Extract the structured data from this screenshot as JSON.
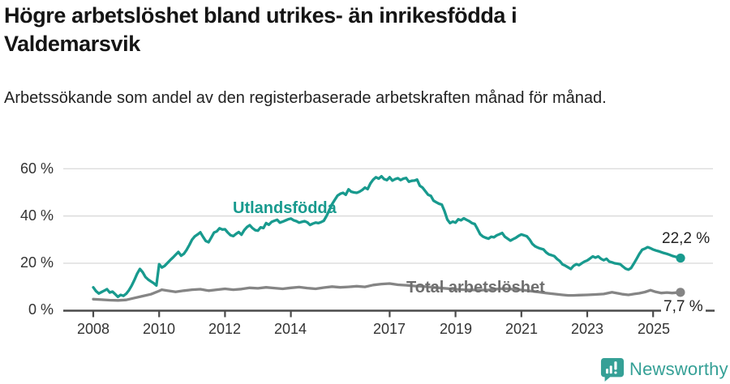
{
  "header": {
    "title": "Högre arbetslöshet bland utrikes- än inrikesfödda i Valdemarsvik",
    "subtitle": "Arbetssökande som andel av den registerbaserade arbetskraften månad för månad."
  },
  "footer": {
    "brand": "Newsworthy"
  },
  "colors": {
    "teal": "#189a8e",
    "gray_line": "#858585",
    "gray_label": "#6e6e6e",
    "axis": "#4a4a4a",
    "grid": "#dcdcdc",
    "logo_teal": "#35a096"
  },
  "chart_data": {
    "type": "line",
    "title": "Högre arbetslöshet bland utrikes- än inrikesfödda i Valdemarsvik",
    "subtitle": "Arbetssökande som andel av den registerbaserade arbetskraften månad för månad.",
    "grid": true,
    "legend_position": "inline-labels",
    "xlim": [
      2007.5,
      2026.2
    ],
    "ylim": [
      0,
      60
    ],
    "y_ticks": [
      0,
      20,
      40,
      60
    ],
    "y_tick_labels": [
      "0 %",
      "20 %",
      "40 %",
      "60 %"
    ],
    "x_ticks": [
      2008,
      2010,
      2012,
      2014,
      2017,
      2019,
      2021,
      2023,
      2025
    ],
    "x_tick_labels": [
      "2008",
      "2010",
      "2012",
      "2014",
      "2017",
      "2019",
      "2021",
      "2023",
      "2025"
    ],
    "series": [
      {
        "name": "Utlandsfödda",
        "color": "#189a8e",
        "end_label": "22,2 %",
        "end_value": 22.2,
        "interval": "monthly",
        "start_year": 2008,
        "start_month": 1,
        "values": [
          9.8,
          8.2,
          7.2,
          7.8,
          8.4,
          9.0,
          7.6,
          8.0,
          6.9,
          5.8,
          6.6,
          6.2,
          7.1,
          8.6,
          10.6,
          13.0,
          15.6,
          17.6,
          16.2,
          14.2,
          13.1,
          12.3,
          11.6,
          10.6,
          19.6,
          18.2,
          18.9,
          20.1,
          21.3,
          22.4,
          23.6,
          24.8,
          23.2,
          24.0,
          25.6,
          27.7,
          30.0,
          31.4,
          32.2,
          33.1,
          31.2,
          29.4,
          28.9,
          30.9,
          33.0,
          33.5,
          34.8,
          34.3,
          34.4,
          33.0,
          31.9,
          31.5,
          32.4,
          33.2,
          32.1,
          34.0,
          35.3,
          36.1,
          34.9,
          34.0,
          33.8,
          35.2,
          34.9,
          37.0,
          36.3,
          37.5,
          38.0,
          38.4,
          37.2,
          37.6,
          38.1,
          38.6,
          38.9,
          38.2,
          37.8,
          37.2,
          37.5,
          37.8,
          37.3,
          36.2,
          36.8,
          37.2,
          37.0,
          37.4,
          38.0,
          40.0,
          42.5,
          45.0,
          46.8,
          48.6,
          49.4,
          49.8,
          49.0,
          51.3,
          50.3,
          50.0,
          49.8,
          50.3,
          51.0,
          52.0,
          51.4,
          53.8,
          55.4,
          56.4,
          55.8,
          56.8,
          55.6,
          55.2,
          56.4,
          55.0,
          55.6,
          56.0,
          55.2,
          55.8,
          56.1,
          54.5,
          54.9,
          55.0,
          55.4,
          52.8,
          52.0,
          50.5,
          49.0,
          48.5,
          46.5,
          45.8,
          45.2,
          44.8,
          42.0,
          38.5,
          37.0,
          37.6,
          37.2,
          38.6,
          38.2,
          39.0,
          38.4,
          37.8,
          37.0,
          36.6,
          34.5,
          32.3,
          31.3,
          30.8,
          30.4,
          31.2,
          31.0,
          31.8,
          32.3,
          32.8,
          31.2,
          30.4,
          29.6,
          30.2,
          30.8,
          31.6,
          32.2,
          31.8,
          31.4,
          30.0,
          28.2,
          27.2,
          26.6,
          26.2,
          25.9,
          24.6,
          23.8,
          23.4,
          23.0,
          21.8,
          20.9,
          19.5,
          19.0,
          18.3,
          17.6,
          18.9,
          19.6,
          19.2,
          20.0,
          20.7,
          21.2,
          22.0,
          22.9,
          22.4,
          22.9,
          21.9,
          21.3,
          21.9,
          20.7,
          20.4,
          20.0,
          19.8,
          19.6,
          18.6,
          17.7,
          17.3,
          18.0,
          19.9,
          21.9,
          24.0,
          25.7,
          26.2,
          26.8,
          26.4,
          25.8,
          25.4,
          25.1,
          24.7,
          24.3,
          24.0,
          23.6,
          23.1,
          22.8,
          22.5,
          22.2
        ]
      },
      {
        "name": "Total arbetslöshet",
        "color": "#858585",
        "end_label": "7,7 %",
        "end_value": 7.7,
        "x": [
          2008.0,
          2008.25,
          2008.5,
          2008.75,
          2009.0,
          2009.25,
          2009.5,
          2009.75,
          2010.0,
          2010.08,
          2010.25,
          2010.5,
          2010.75,
          2011.0,
          2011.25,
          2011.5,
          2011.75,
          2012.0,
          2012.25,
          2012.5,
          2012.75,
          2013.0,
          2013.25,
          2013.5,
          2013.75,
          2014.0,
          2014.25,
          2014.5,
          2014.75,
          2015.0,
          2015.25,
          2015.5,
          2015.75,
          2016.0,
          2016.25,
          2016.5,
          2016.75,
          2017.0,
          2017.25,
          2017.5,
          2017.75,
          2018.0,
          2018.25,
          2018.5,
          2018.75,
          2019.0,
          2019.25,
          2019.5,
          2019.75,
          2020.0,
          2020.25,
          2020.5,
          2020.75,
          2021.0,
          2021.25,
          2021.5,
          2021.75,
          2022.0,
          2022.25,
          2022.42,
          2022.58,
          2022.75,
          2023.0,
          2023.25,
          2023.5,
          2023.75,
          2023.92,
          2024.08,
          2024.25,
          2024.42,
          2024.58,
          2024.75,
          2024.92,
          2025.08,
          2025.25,
          2025.42,
          2025.58,
          2025.83
        ],
        "y": [
          4.8,
          4.6,
          4.4,
          4.3,
          4.5,
          5.3,
          6.1,
          6.9,
          8.3,
          8.8,
          8.4,
          7.9,
          8.4,
          8.8,
          9.0,
          8.4,
          8.8,
          9.2,
          8.8,
          9.1,
          9.6,
          9.4,
          9.8,
          9.5,
          9.2,
          9.6,
          9.9,
          9.5,
          9.2,
          9.7,
          10.1,
          9.8,
          10.0,
          10.3,
          10.0,
          10.8,
          11.2,
          11.4,
          10.9,
          10.7,
          10.4,
          10.2,
          9.9,
          9.6,
          9.3,
          9.0,
          8.8,
          8.7,
          8.6,
          8.7,
          9.1,
          9.3,
          9.0,
          8.7,
          8.3,
          7.9,
          7.4,
          7.0,
          6.6,
          6.4,
          6.4,
          6.5,
          6.6,
          6.8,
          7.0,
          7.7,
          7.3,
          6.9,
          6.6,
          7.0,
          7.3,
          7.8,
          8.6,
          7.9,
          7.4,
          7.6,
          7.4,
          7.7
        ]
      }
    ]
  }
}
